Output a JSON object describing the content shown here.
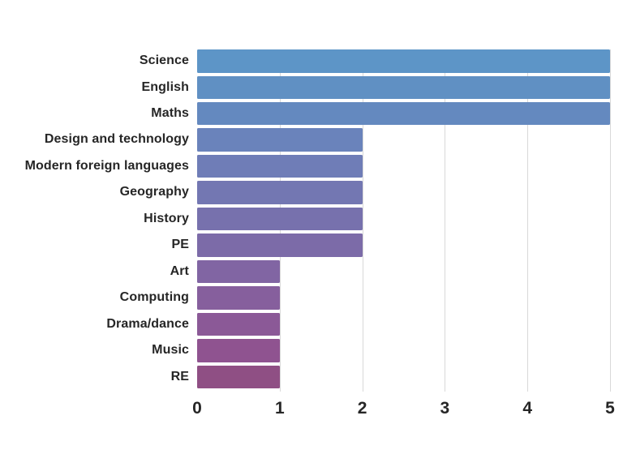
{
  "chart_data": {
    "type": "bar",
    "orientation": "horizontal",
    "title": "",
    "xlabel": "",
    "ylabel": "",
    "categories": [
      "Science",
      "English",
      "Maths",
      "Design and technology",
      "Modern foreign languages",
      "Geography",
      "History",
      "PE",
      "Art",
      "Computing",
      "Drama/dance",
      "Music",
      "RE"
    ],
    "values": [
      5,
      5,
      5,
      2,
      2,
      2,
      2,
      2,
      1,
      1,
      1,
      1,
      1
    ],
    "bar_colors": [
      "#5d95c7",
      "#6090c3",
      "#6489bf",
      "#6a83bb",
      "#6f7db7",
      "#7377b2",
      "#7771ad",
      "#7c6ba8",
      "#8165a3",
      "#865f9d",
      "#8b5997",
      "#8f5390",
      "#8f4f84"
    ],
    "xlim": [
      0,
      5
    ],
    "xticks": [
      "0",
      "1",
      "2",
      "3",
      "4",
      "5"
    ],
    "grid": "vertical",
    "gridline_color": "#d9d9d9",
    "legend": "none",
    "text_color": "#262626",
    "background_color": "#ffffff"
  }
}
